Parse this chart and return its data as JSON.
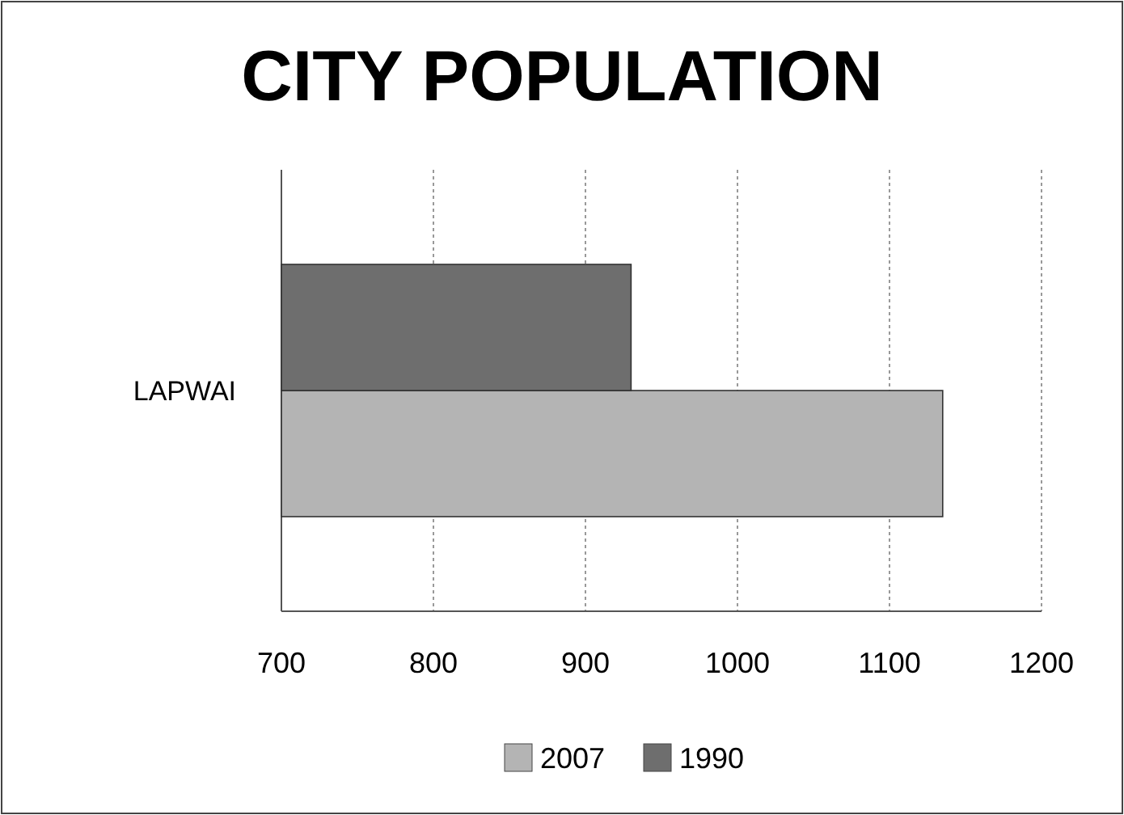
{
  "chart_data": {
    "type": "bar",
    "orientation": "horizontal",
    "title": "CITY POPULATION",
    "categories": [
      "LAPWAI"
    ],
    "series": [
      {
        "name": "2007",
        "color": "#b4b4b4",
        "values": [
          1135
        ]
      },
      {
        "name": "1990",
        "color": "#6e6e6e",
        "values": [
          930
        ]
      }
    ],
    "xlim": [
      700,
      1200
    ],
    "xticks": [
      700,
      800,
      900,
      1000,
      1100,
      1200
    ],
    "grid": "x",
    "legend": "bottom"
  }
}
